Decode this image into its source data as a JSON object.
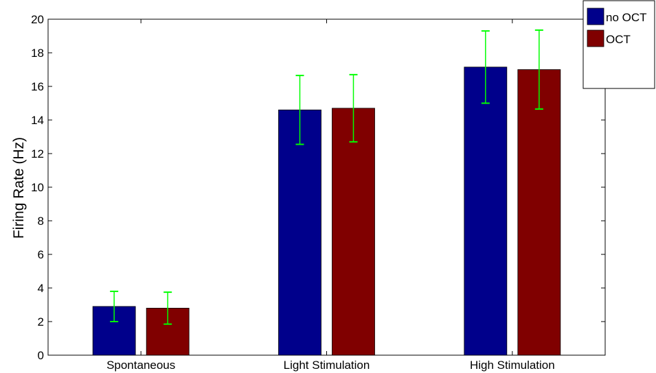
{
  "chart_data": {
    "type": "bar",
    "categories": [
      "Spontaneous",
      "Light Stimulation",
      "High Stimulation"
    ],
    "series": [
      {
        "name": "no OCT",
        "color": "#00008b",
        "values": [
          2.9,
          14.6,
          17.15
        ],
        "errors": [
          0.9,
          2.05,
          2.15
        ]
      },
      {
        "name": "OCT",
        "color": "#800000",
        "values": [
          2.8,
          14.7,
          17.0
        ],
        "errors": [
          0.95,
          2.0,
          2.35
        ]
      }
    ],
    "error_bar_color": "#00ff00",
    "xlabel": "",
    "ylabel": "Firing Rate (Hz)",
    "ylim": [
      0,
      20
    ],
    "yticks": [
      0,
      2,
      4,
      6,
      8,
      10,
      12,
      14,
      16,
      18,
      20
    ],
    "grid": false,
    "legend": "top-right"
  }
}
